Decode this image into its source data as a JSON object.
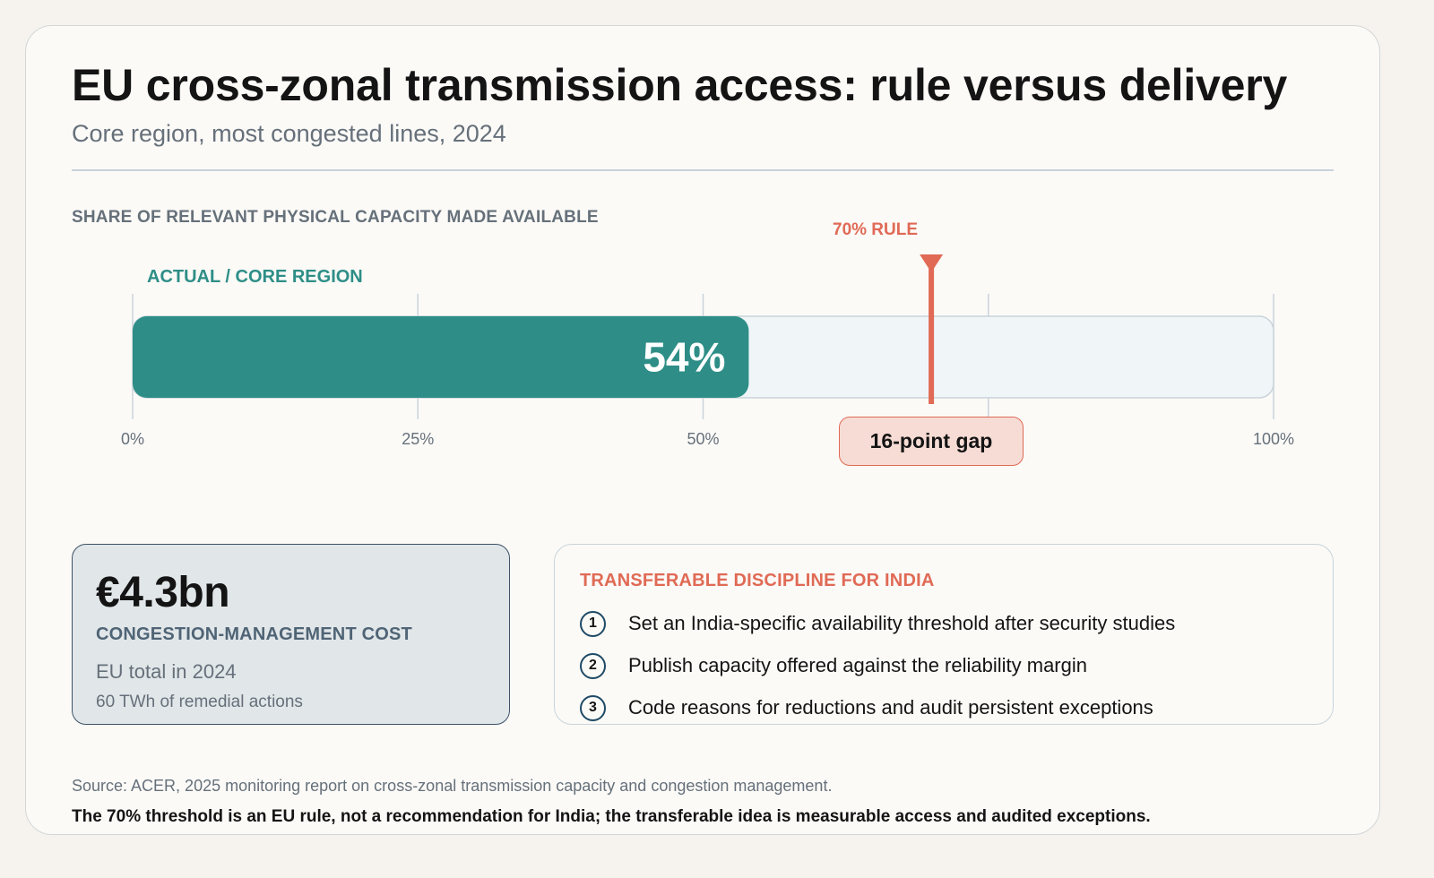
{
  "header": {
    "title": "EU cross-zonal transmission access: rule versus delivery",
    "subtitle": "Core region, most congested lines, 2024"
  },
  "chart_data": {
    "type": "bar",
    "orientation": "horizontal",
    "title": "SHARE OF RELEVANT PHYSICAL CAPACITY MADE AVAILABLE",
    "categories": [
      "ACTUAL / CORE REGION"
    ],
    "values": [
      54
    ],
    "value_label": "54%",
    "xlim": [
      0,
      100
    ],
    "ticks": [
      0,
      25,
      50,
      75,
      100
    ],
    "tick_labels": [
      "0%",
      "25%",
      "50%",
      "",
      "100%"
    ],
    "reference_line": {
      "label": "70% RULE",
      "value": 70
    },
    "annotation": "16-point gap",
    "grid": true
  },
  "cost": {
    "value": "€4.3bn",
    "label": "CONGESTION-MANAGEMENT COST",
    "description": "EU total in 2024",
    "note": "60 TWh of remedial actions"
  },
  "discipline": {
    "title": "TRANSFERABLE DISCIPLINE FOR INDIA",
    "items": [
      {
        "number": "1",
        "text": "Set an India-specific availability threshold after security studies"
      },
      {
        "number": "2",
        "text": "Publish capacity offered against the reliability margin"
      },
      {
        "number": "3",
        "text": "Code reasons for reductions and audit persistent exceptions"
      }
    ]
  },
  "footer": {
    "source": "Source: ACER, 2025 monitoring report on cross-zonal transmission capacity and congestion management.",
    "note": "The 70% threshold is an EU rule, not a recommendation for India; the transferable idea is measurable access and audited exceptions."
  },
  "colors": {
    "actual": "#2e8e87",
    "track": "#f0f5f8",
    "rule": "#e06a55",
    "grid": "#c9d3da"
  }
}
